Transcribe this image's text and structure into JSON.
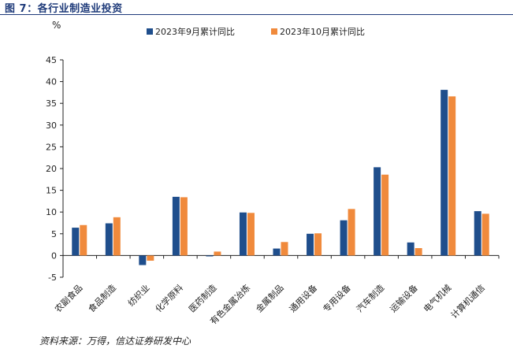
{
  "figure": {
    "title": "图 7：各行业制造业投资",
    "source": "资料来源：万得，信达证券研发中心"
  },
  "colors": {
    "series_1": "#1f4e8c",
    "series_2": "#f08a3c",
    "title": "#1f3b7a"
  },
  "chart_data": {
    "type": "bar",
    "ylabel": "%",
    "xlabel": "",
    "ylim": [
      -5,
      45
    ],
    "yticks": [
      -5,
      0,
      5,
      10,
      15,
      20,
      25,
      30,
      35,
      40,
      45
    ],
    "grid": false,
    "legend_position": "top",
    "categories": [
      "农副食品",
      "食品制造",
      "纺织业",
      "化学原料",
      "医药制造",
      "有色金属冶炼",
      "金属制品",
      "通用设备",
      "专用设备",
      "汽车制造",
      "运输设备",
      "电气机械",
      "计算机通信"
    ],
    "series": [
      {
        "name": "2023年9月累计同比",
        "values": [
          6.4,
          7.4,
          -2.2,
          13.5,
          -0.2,
          9.9,
          1.6,
          5.0,
          8.1,
          20.3,
          3.0,
          38.1,
          10.2
        ]
      },
      {
        "name": "2023年10月累计同比",
        "values": [
          7.0,
          8.8,
          -1.2,
          13.4,
          0.9,
          9.8,
          3.1,
          5.1,
          10.7,
          18.6,
          1.7,
          36.6,
          9.6
        ]
      }
    ]
  }
}
